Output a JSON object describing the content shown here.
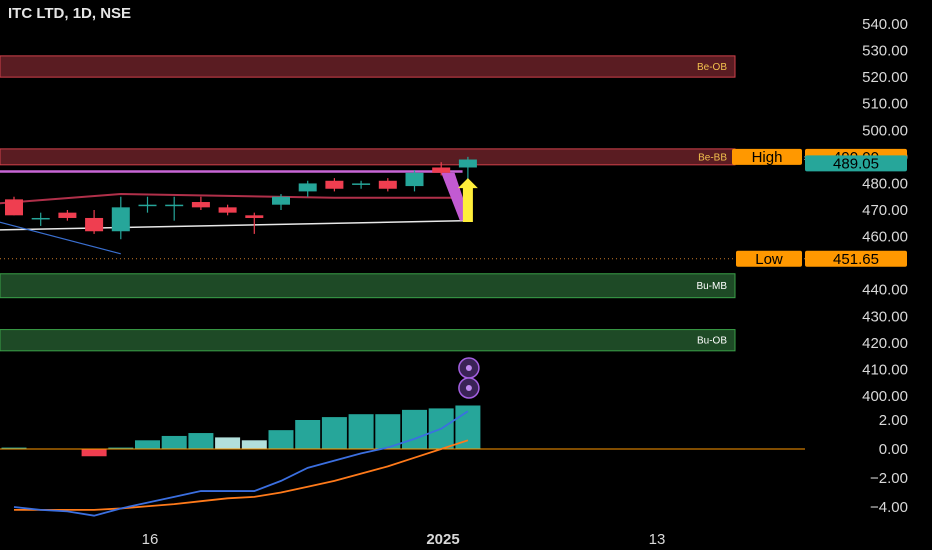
{
  "chart_data": {
    "type": "candlestick",
    "title": "ITC LTD, 1D, NSE",
    "price_axis": {
      "ticks": [
        "540.00",
        "530.00",
        "520.00",
        "510.00",
        "500.00",
        "490.00",
        "480.00",
        "470.00",
        "460.00",
        "440.00",
        "430.00",
        "420.00",
        "410.00",
        "400.00"
      ],
      "ylim": [
        400,
        545
      ]
    },
    "time_axis": {
      "ticks": [
        "16",
        "2025",
        "13"
      ]
    },
    "candles": [
      {
        "o": 474,
        "h": 475,
        "l": 468,
        "c": 468
      },
      {
        "o": 467,
        "h": 469,
        "l": 464,
        "c": 467
      },
      {
        "o": 469,
        "h": 470,
        "l": 466,
        "c": 467
      },
      {
        "o": 467,
        "h": 470,
        "l": 461,
        "c": 462
      },
      {
        "o": 462,
        "h": 475,
        "l": 459,
        "c": 471
      },
      {
        "o": 472,
        "h": 475,
        "l": 469,
        "c": 472
      },
      {
        "o": 472,
        "h": 475,
        "l": 466,
        "c": 472
      },
      {
        "o": 473,
        "h": 475,
        "l": 470,
        "c": 471
      },
      {
        "o": 471,
        "h": 472,
        "l": 468,
        "c": 469
      },
      {
        "o": 468,
        "h": 469,
        "l": 461,
        "c": 467
      },
      {
        "o": 472,
        "h": 476,
        "l": 470,
        "c": 475
      },
      {
        "o": 477,
        "h": 481,
        "l": 475,
        "c": 480
      },
      {
        "o": 481,
        "h": 482,
        "l": 477,
        "c": 478
      },
      {
        "o": 480,
        "h": 481,
        "l": 478,
        "c": 480
      },
      {
        "o": 481,
        "h": 482,
        "l": 477,
        "c": 478
      },
      {
        "o": 479,
        "h": 485,
        "l": 477,
        "c": 484
      },
      {
        "o": 486,
        "h": 488,
        "l": 483,
        "c": 484
      },
      {
        "o": 486,
        "h": 490,
        "l": 481,
        "c": 489
      }
    ],
    "zones": [
      {
        "label": "Be-OB",
        "top": 528,
        "bottom": 520,
        "kind": "bear"
      },
      {
        "label": "Be-BB",
        "top": 493,
        "bottom": 487,
        "kind": "bear"
      },
      {
        "label": "Bu-MB",
        "top": 446,
        "bottom": 437,
        "kind": "bull"
      },
      {
        "label": "Bu-OB",
        "top": 425,
        "bottom": 417,
        "kind": "bull"
      }
    ],
    "levels": [
      {
        "label": "High",
        "value_text": "490.00",
        "value": 490
      },
      {
        "label": "",
        "value_text": "489.05",
        "value": 489.05
      },
      {
        "label": "Low",
        "value_text": "451.65",
        "value": 451.65
      }
    ],
    "indicator": {
      "ticks": [
        "2.00",
        "0.00",
        "−2.00",
        "−4.00"
      ],
      "ylim": [
        -4.8,
        3
      ],
      "histogram": [
        0.1,
        0,
        0,
        -0.5,
        0.1,
        0.6,
        0.9,
        1.1,
        0.8,
        0.6,
        1.3,
        2.0,
        2.2,
        2.4,
        2.4,
        2.7,
        2.8,
        3.0
      ],
      "macd": [
        -4.0,
        -4.2,
        -4.3,
        -4.6,
        -4.1,
        -3.7,
        -3.3,
        -2.9,
        -2.9,
        -2.9,
        -2.2,
        -1.3,
        -0.8,
        -0.3,
        0.1,
        0.7,
        1.4,
        2.6
      ],
      "signal": [
        -4.2,
        -4.2,
        -4.2,
        -4.2,
        -4.1,
        -3.95,
        -3.8,
        -3.6,
        -3.4,
        -3.3,
        -3.0,
        -2.6,
        -2.2,
        -1.7,
        -1.2,
        -0.6,
        0.0,
        0.6
      ]
    }
  }
}
